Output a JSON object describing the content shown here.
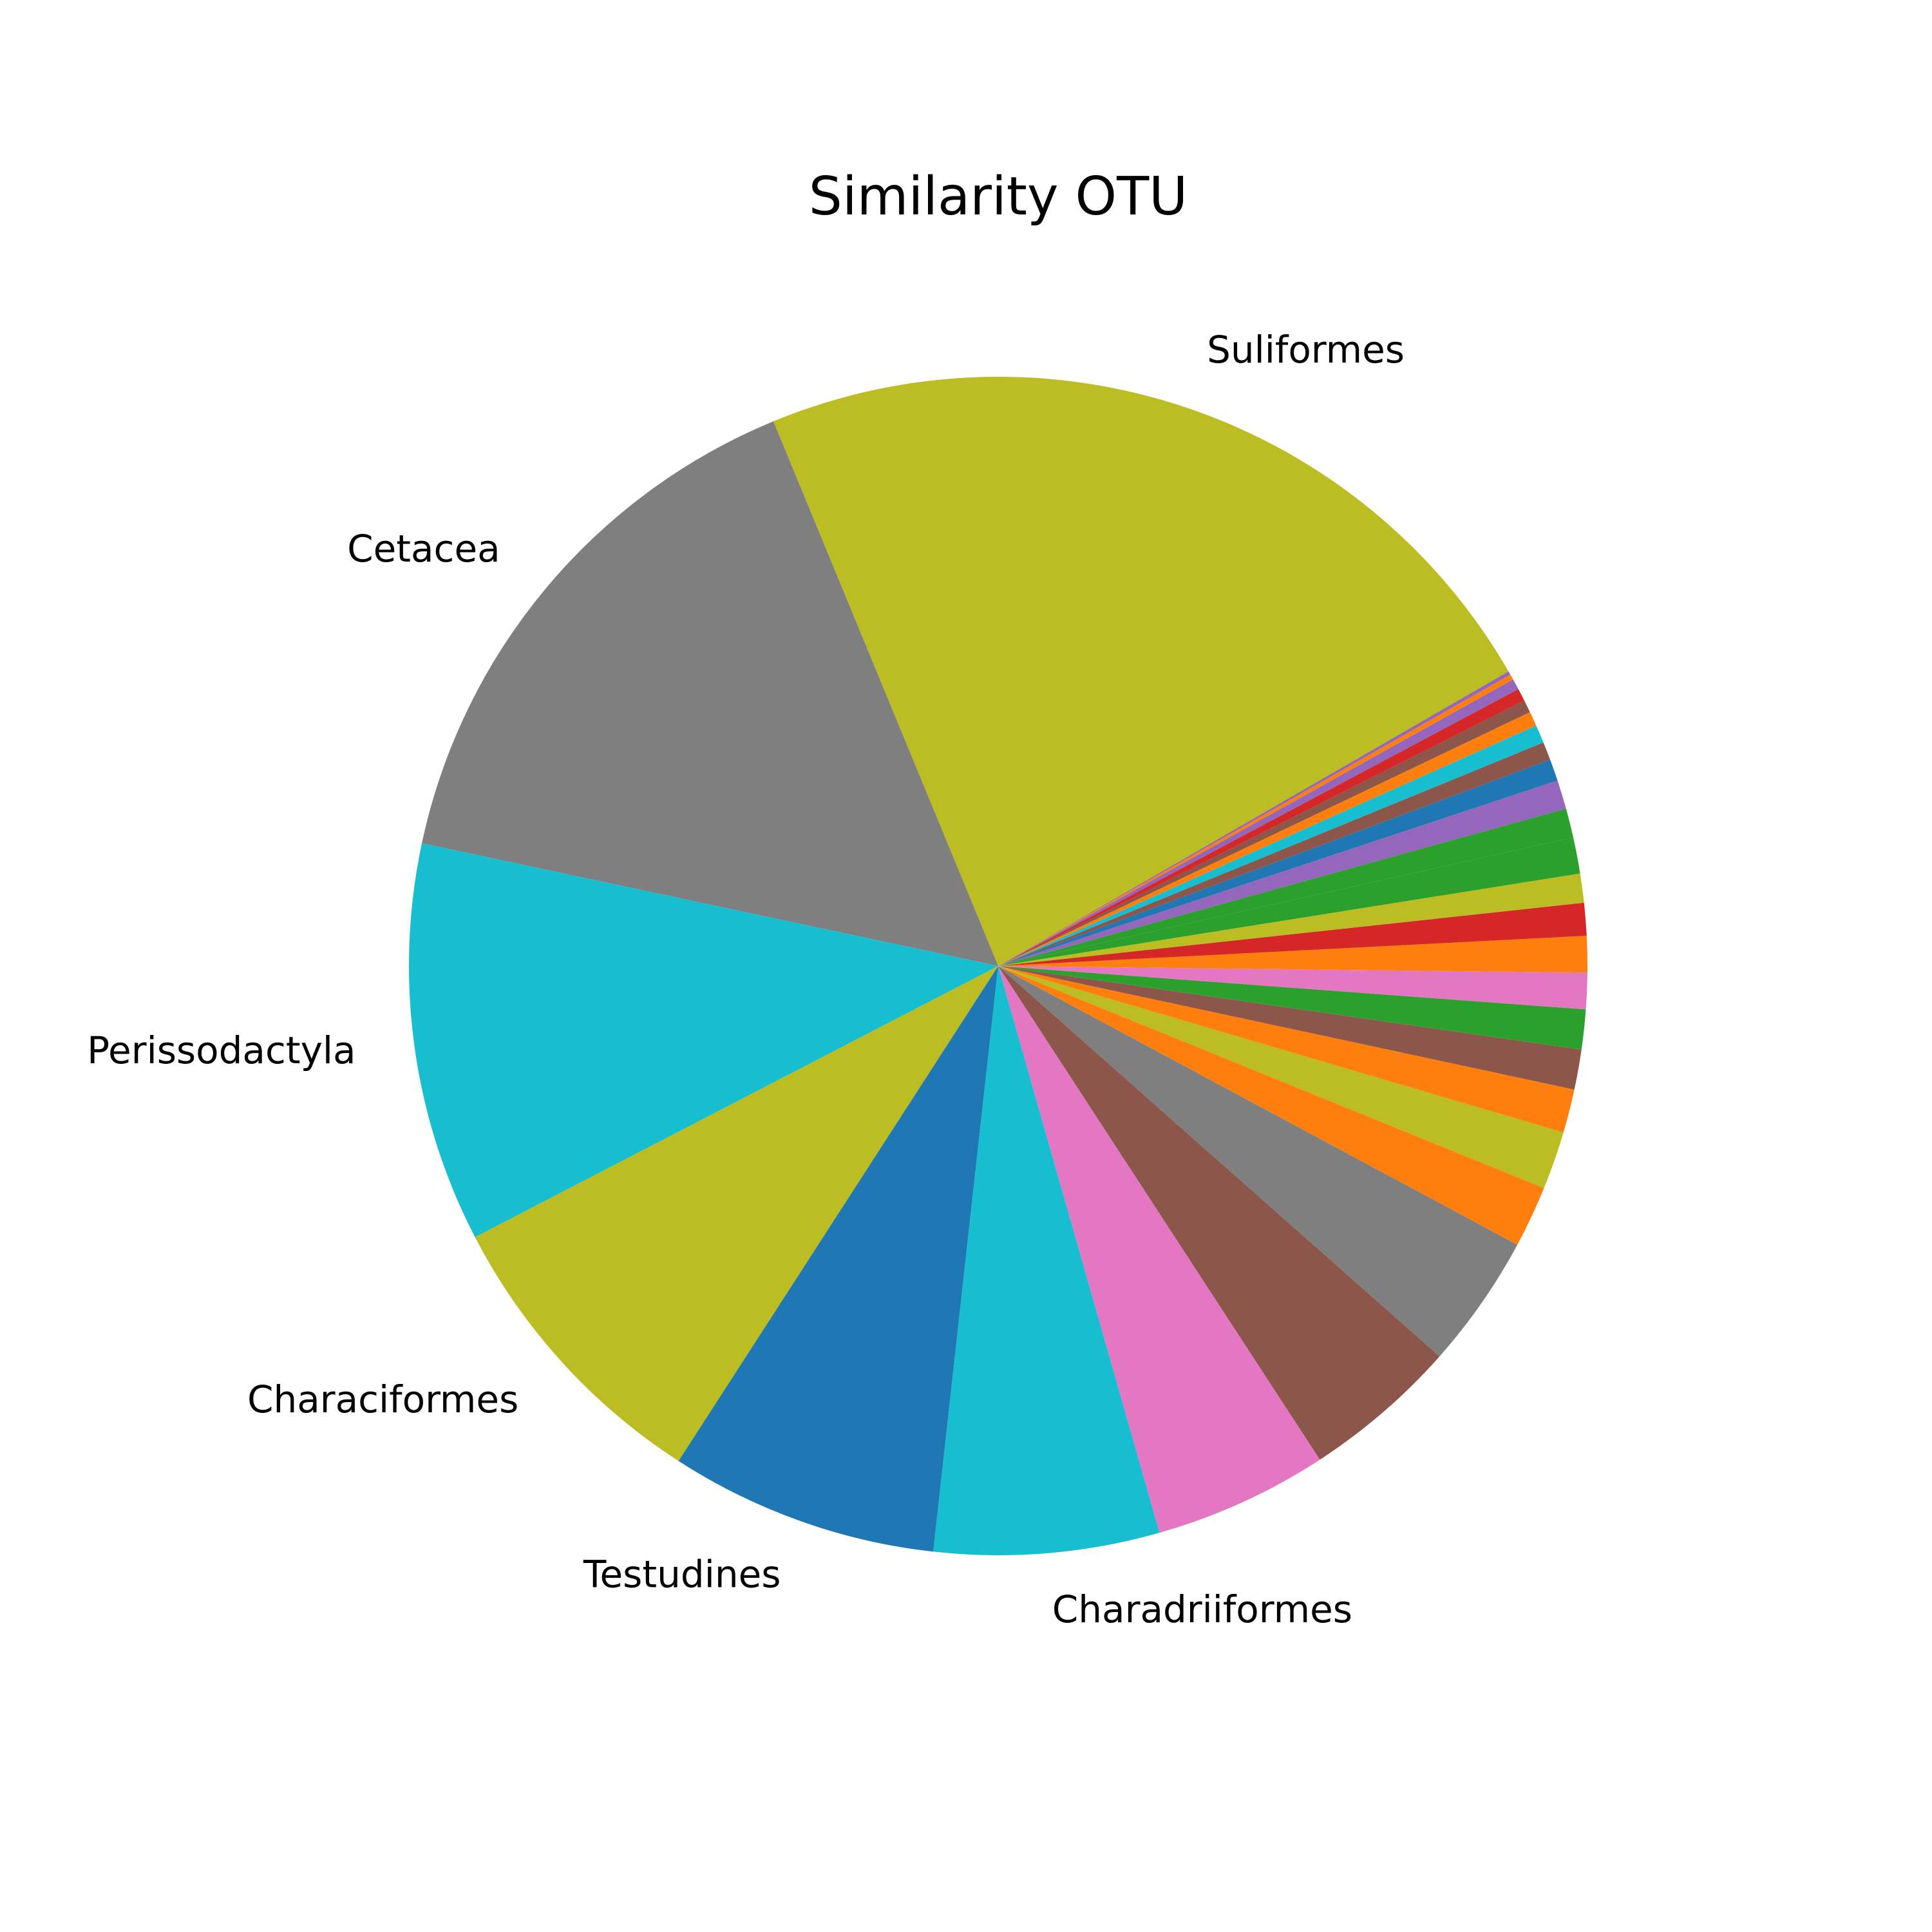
{
  "chart_data": {
    "type": "pie",
    "title": "Similarity OTU",
    "start_angle_deg": 30,
    "direction": "counterclockwise",
    "slices": [
      {
        "label": "Suliformes",
        "value": 23.0,
        "color": "#bcbd22"
      },
      {
        "label": "Cetacea",
        "value": 15.5,
        "color": "#7f7f7f"
      },
      {
        "label": "Perissodactyla",
        "value": 11.0,
        "color": "#17becf"
      },
      {
        "label": "Characiformes",
        "value": 8.3,
        "color": "#bcbd22"
      },
      {
        "label": "Testudines",
        "value": 7.4,
        "color": "#1f77b4"
      },
      {
        "label": "Charadriiformes",
        "value": 6.2,
        "color": "#17becf"
      },
      {
        "label": "",
        "value": 4.8,
        "color": "#e377c2"
      },
      {
        "label": "",
        "value": 4.3,
        "color": "#8c564b"
      },
      {
        "label": "",
        "value": 3.7,
        "color": "#7f7f7f"
      },
      {
        "label": "",
        "value": 1.7,
        "color": "#ff7f0e"
      },
      {
        "label": "",
        "value": 1.6,
        "color": "#bcbd22"
      },
      {
        "label": "",
        "value": 1.2,
        "color": "#ff7f0e"
      },
      {
        "label": "",
        "value": 1.1,
        "color": "#8c564b"
      },
      {
        "label": "",
        "value": 1.1,
        "color": "#2ca02c"
      },
      {
        "label": "",
        "value": 1.0,
        "color": "#e377c2"
      },
      {
        "label": "",
        "value": 1.0,
        "color": "#ff7f0e"
      },
      {
        "label": "",
        "value": 0.9,
        "color": "#d62728"
      },
      {
        "label": "",
        "value": 0.8,
        "color": "#bcbd22"
      },
      {
        "label": "",
        "value": 1.0,
        "color": "#2ca02c"
      },
      {
        "label": "",
        "value": 0.8,
        "color": "#2ca02c"
      },
      {
        "label": "",
        "value": 0.8,
        "color": "#9467bd"
      },
      {
        "label": "",
        "value": 0.6,
        "color": "#1f77b4"
      },
      {
        "label": "",
        "value": 0.5,
        "color": "#8c564b"
      },
      {
        "label": "",
        "value": 0.5,
        "color": "#17becf"
      },
      {
        "label": "",
        "value": 0.4,
        "color": "#ff7f0e"
      },
      {
        "label": "",
        "value": 0.35,
        "color": "#8c564b"
      },
      {
        "label": "",
        "value": 0.35,
        "color": "#d62728"
      },
      {
        "label": "",
        "value": 0.3,
        "color": "#9467bd"
      },
      {
        "label": "",
        "value": 0.15,
        "color": "#ff7f0e"
      },
      {
        "label": "",
        "value": 0.1,
        "color": "#9467bd"
      }
    ]
  }
}
